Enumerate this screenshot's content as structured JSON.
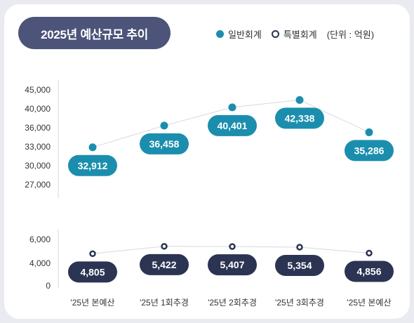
{
  "chart_data": {
    "type": "line",
    "title": "2025년 예산규모 추이",
    "unit": "(단위 : 억원)",
    "categories": [
      "'25년 본예산",
      "'25년 1회추경",
      "'25년 2회추경",
      "'25년 3회추경",
      "'25년 본예산"
    ],
    "series": [
      {
        "name": "일반회계",
        "values": [
          32912,
          36458,
          40401,
          42338,
          35286
        ],
        "color": "#1b8eae"
      },
      {
        "name": "특별회계",
        "values": [
          4805,
          5422,
          5407,
          5354,
          4856
        ],
        "color": "#2b3452"
      }
    ],
    "y_ticks_upper": [
      "27,000",
      "30,000",
      "33,000",
      "36,000",
      "40,000",
      "45,000"
    ],
    "y_ticks_lower": [
      "0",
      "4,000",
      "6,000"
    ],
    "axis_break": true,
    "grid": false,
    "legend_position": "top-right"
  }
}
